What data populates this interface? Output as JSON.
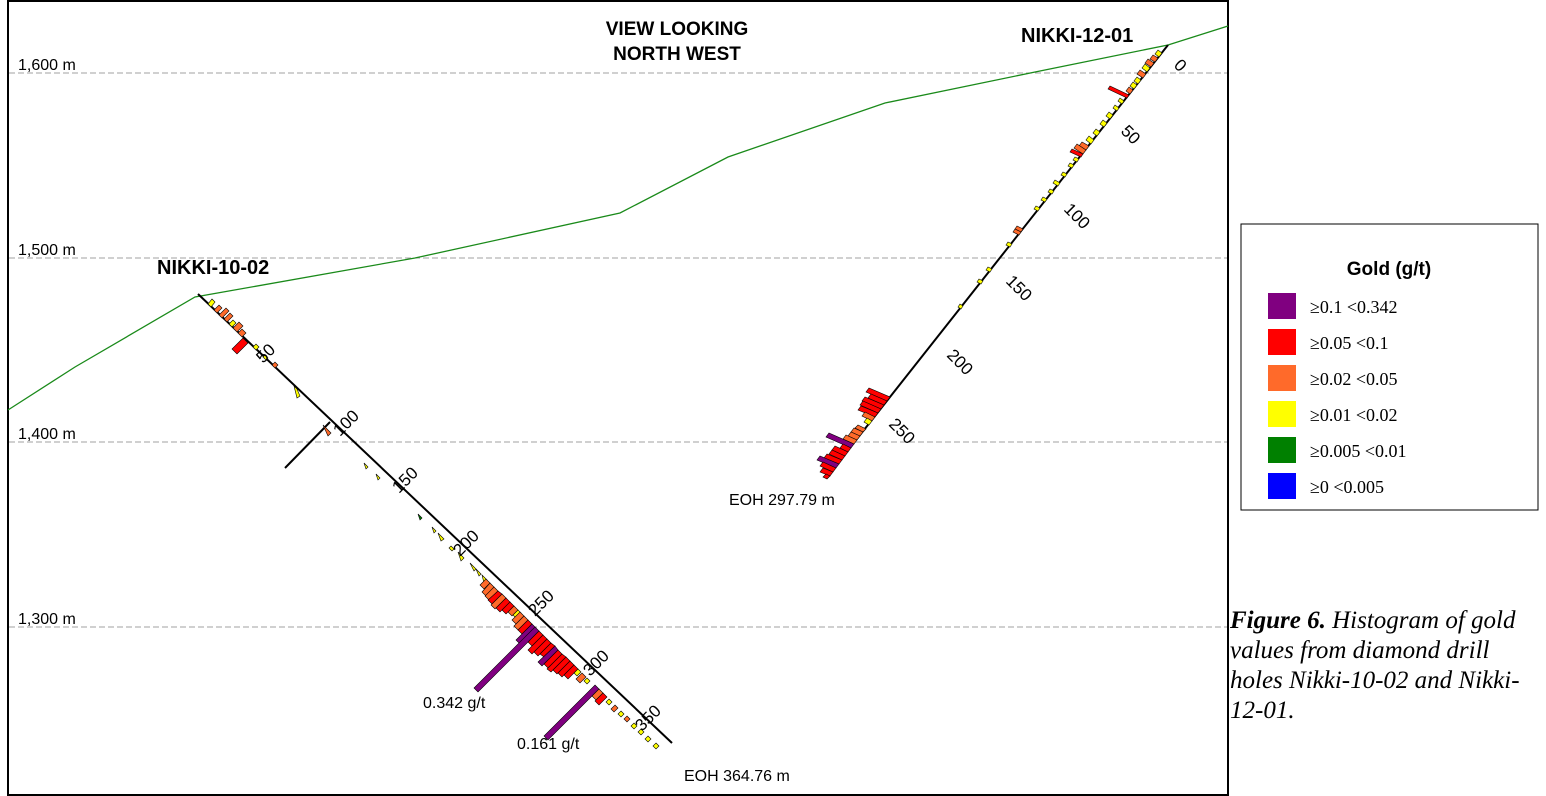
{
  "view_label": [
    "VIEW LOOKING",
    "NORTH WEST"
  ],
  "elevations": [
    "1,600 m",
    "1,500 m",
    "1,400 m",
    "1,300 m"
  ],
  "holes": [
    {
      "name": "NIKKI-10-02",
      "depth_labels": [
        "50",
        "100",
        "150",
        "200",
        "250",
        "300",
        "350"
      ],
      "eoh": "EOH 364.76 m",
      "annotations": [
        "0.342 g/t",
        "0.161 g/t"
      ]
    },
    {
      "name": "NIKKI-12-01",
      "depth_labels": [
        "0",
        "50",
        "100",
        "150",
        "200",
        "250"
      ],
      "eoh": "EOH 297.79 m"
    }
  ],
  "legend": {
    "title": "Gold (g/t)",
    "items": [
      {
        "label": "≥0.1 <0.342",
        "color": "#800080"
      },
      {
        "label": "≥0.05 <0.1",
        "color": "#ff0000"
      },
      {
        "label": "≥0.02 <0.05",
        "color": "#ff6a2a"
      },
      {
        "label": "≥0.01 <0.02",
        "color": "#ffff00"
      },
      {
        "label": "≥0.005 <0.01",
        "color": "#008000"
      },
      {
        "label": "≥0 <0.005",
        "color": "#0000ff"
      }
    ]
  },
  "caption": {
    "bold": "Figure 6.",
    "text": " Histogram of gold values from diamond drill holes Nikki-10-02 and Nikki-12-01."
  },
  "colors": {
    "topography": "#1a8a1a",
    "gridline": "#a0a0a0",
    "purple": "#800080",
    "red": "#ff0000",
    "orange": "#ff6a2a",
    "yellow": "#ffff00",
    "green": "#008000",
    "blue": "#0000ff"
  }
}
